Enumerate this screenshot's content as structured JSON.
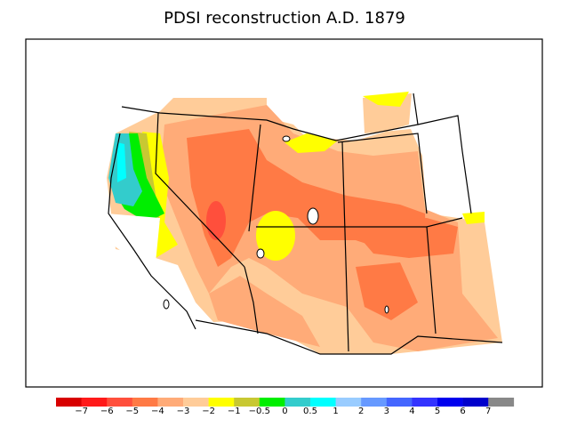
{
  "title": "PDSI reconstruction A.D. 1879",
  "legend": {
    "colors": [
      "#d80000",
      "#ff1a1a",
      "#ff4f3c",
      "#ff7a45",
      "#ffab78",
      "#ffcc99",
      "#ffff00",
      "#c8c832",
      "#00ee00",
      "#33cccc",
      "#00ffff",
      "#99ccff",
      "#6699ff",
      "#4466ff",
      "#3333ff",
      "#0000ee",
      "#0000cc",
      "#888888"
    ],
    "tick_labels": [
      "−7",
      "−6",
      "−5",
      "−4",
      "−3",
      "−2",
      "−1",
      "−0.5",
      "0",
      "0.5",
      "1",
      "2",
      "3",
      "4",
      "5",
      "6",
      "7"
    ]
  }
}
